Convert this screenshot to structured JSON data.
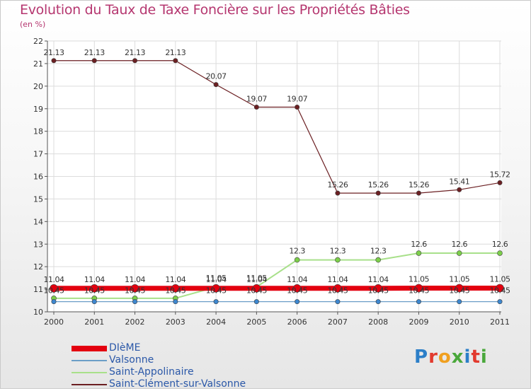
{
  "title": "Evolution du Taux de Taxe Foncière sur les Propriétés Bâties",
  "unit_label": "(en %)",
  "logo": {
    "text": "Proxiti",
    "colors": [
      "#2c7fc8",
      "#e23a2e",
      "#f0a020",
      "#4aa83b",
      "#2c7fc8",
      "#e23a2e",
      "#4aa83b"
    ]
  },
  "chart_data": {
    "type": "line",
    "x": [
      "2000",
      "2001",
      "2002",
      "2003",
      "2004",
      "2005",
      "2006",
      "2007",
      "2008",
      "2009",
      "2010",
      "2011"
    ],
    "ylim": [
      10,
      22
    ],
    "yticks": [
      "10",
      "11",
      "12",
      "13",
      "14",
      "15",
      "16",
      "17",
      "18",
      "19",
      "20",
      "21",
      "22"
    ],
    "grid": true,
    "legend_position": "bottom-left",
    "series": [
      {
        "name": "Saint-Clément-sur-Valsonne",
        "color": "#6b1f22",
        "marker": "#6b1f22",
        "width": 1.2,
        "r": 3.2,
        "values": [
          21.13,
          21.13,
          21.13,
          21.13,
          20.07,
          19.07,
          19.07,
          15.26,
          15.26,
          15.26,
          15.41,
          15.72
        ],
        "labels": [
          "21.13",
          "21.13",
          "21.13",
          "21.13",
          "20.07",
          "19.07",
          "19.07",
          "15.26",
          "15.26",
          "15.26",
          "15.41",
          "15.72"
        ]
      },
      {
        "name": "Saint-Appolinaire",
        "color": "#a8e08a",
        "marker": "#7ccf4a",
        "width": 2,
        "r": 3.5,
        "values": [
          10.6,
          10.6,
          10.6,
          10.6,
          11.1,
          11.1,
          12.3,
          12.3,
          12.3,
          12.6,
          12.6,
          12.6
        ],
        "labels": [
          "",
          "",
          "",
          "",
          "11.05",
          "11.05",
          "12.3",
          "12.3",
          "12.3",
          "12.6",
          "12.6",
          "12.6"
        ]
      },
      {
        "name": "Valsonne",
        "color": "#6b9ec7",
        "marker": "#3d87cf",
        "width": 1.2,
        "r": 3.2,
        "values": [
          10.45,
          10.45,
          10.45,
          10.45,
          10.45,
          10.45,
          10.45,
          10.45,
          10.45,
          10.45,
          10.45,
          10.45
        ],
        "labels": [
          "10.45",
          "10.45",
          "10.45",
          "10.45",
          "10.45",
          "10.45",
          "10.45",
          "10.45",
          "10.45",
          "10.45",
          "10.45",
          "10.45"
        ]
      },
      {
        "name": "DIèME",
        "color": "#e3000f",
        "marker": "#e3000f",
        "width": 7,
        "r": 5.5,
        "values": [
          11.04,
          11.04,
          11.04,
          11.04,
          11.04,
          11.04,
          11.04,
          11.04,
          11.04,
          11.05,
          11.05,
          11.05
        ],
        "labels": [
          "11.04",
          "11.04",
          "11.04",
          "11.04",
          "11.04",
          "11.04",
          "11.04",
          "11.04",
          "11.04",
          "11.05",
          "11.05",
          "11.05"
        ]
      }
    ],
    "legend": [
      {
        "name": "DIèME",
        "color": "#e3000f",
        "thickness": 8
      },
      {
        "name": "Valsonne",
        "color": "#6b9ec7",
        "thickness": 2
      },
      {
        "name": "Saint-Appolinaire",
        "color": "#a8e08a",
        "thickness": 2
      },
      {
        "name": "Saint-Clément-sur-Valsonne",
        "color": "#6b1f22",
        "thickness": 2
      }
    ]
  }
}
